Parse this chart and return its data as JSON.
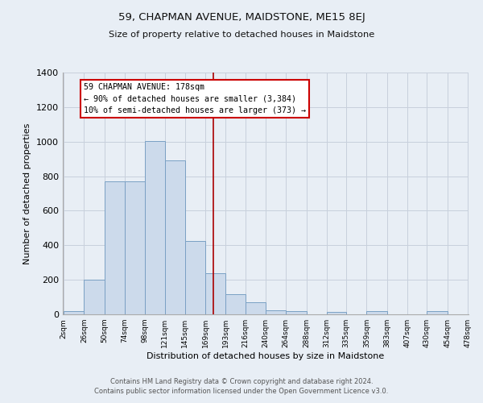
{
  "title": "59, CHAPMAN AVENUE, MAIDSTONE, ME15 8EJ",
  "subtitle": "Size of property relative to detached houses in Maidstone",
  "xlabel": "Distribution of detached houses by size in Maidstone",
  "ylabel": "Number of detached properties",
  "bin_edges": [
    2,
    26,
    50,
    74,
    98,
    121,
    145,
    169,
    193,
    216,
    240,
    264,
    288,
    312,
    335,
    359,
    383,
    407,
    430,
    454,
    478
  ],
  "bin_labels": [
    "2sqm",
    "26sqm",
    "50sqm",
    "74sqm",
    "98sqm",
    "121sqm",
    "145sqm",
    "169sqm",
    "193sqm",
    "216sqm",
    "240sqm",
    "264sqm",
    "288sqm",
    "312sqm",
    "335sqm",
    "359sqm",
    "383sqm",
    "407sqm",
    "430sqm",
    "454sqm",
    "478sqm"
  ],
  "bar_heights": [
    20,
    200,
    770,
    770,
    1005,
    890,
    425,
    240,
    115,
    70,
    25,
    20,
    0,
    15,
    0,
    20,
    0,
    0,
    20,
    0,
    0
  ],
  "bar_color": "#ccdaeb",
  "bar_edge_color": "#7aa0c4",
  "vline_x": 178,
  "vline_color": "#aa0000",
  "annotation_text": "59 CHAPMAN AVENUE: 178sqm\n← 90% of detached houses are smaller (3,384)\n10% of semi-detached houses are larger (373) →",
  "annotation_box_color": "#ffffff",
  "annotation_box_edge": "#cc0000",
  "ylim": [
    0,
    1400
  ],
  "yticks": [
    0,
    200,
    400,
    600,
    800,
    1000,
    1200,
    1400
  ],
  "grid_color": "#c8d0dc",
  "bg_color": "#e8eef5",
  "footer_line1": "Contains HM Land Registry data © Crown copyright and database right 2024.",
  "footer_line2": "Contains public sector information licensed under the Open Government Licence v3.0."
}
